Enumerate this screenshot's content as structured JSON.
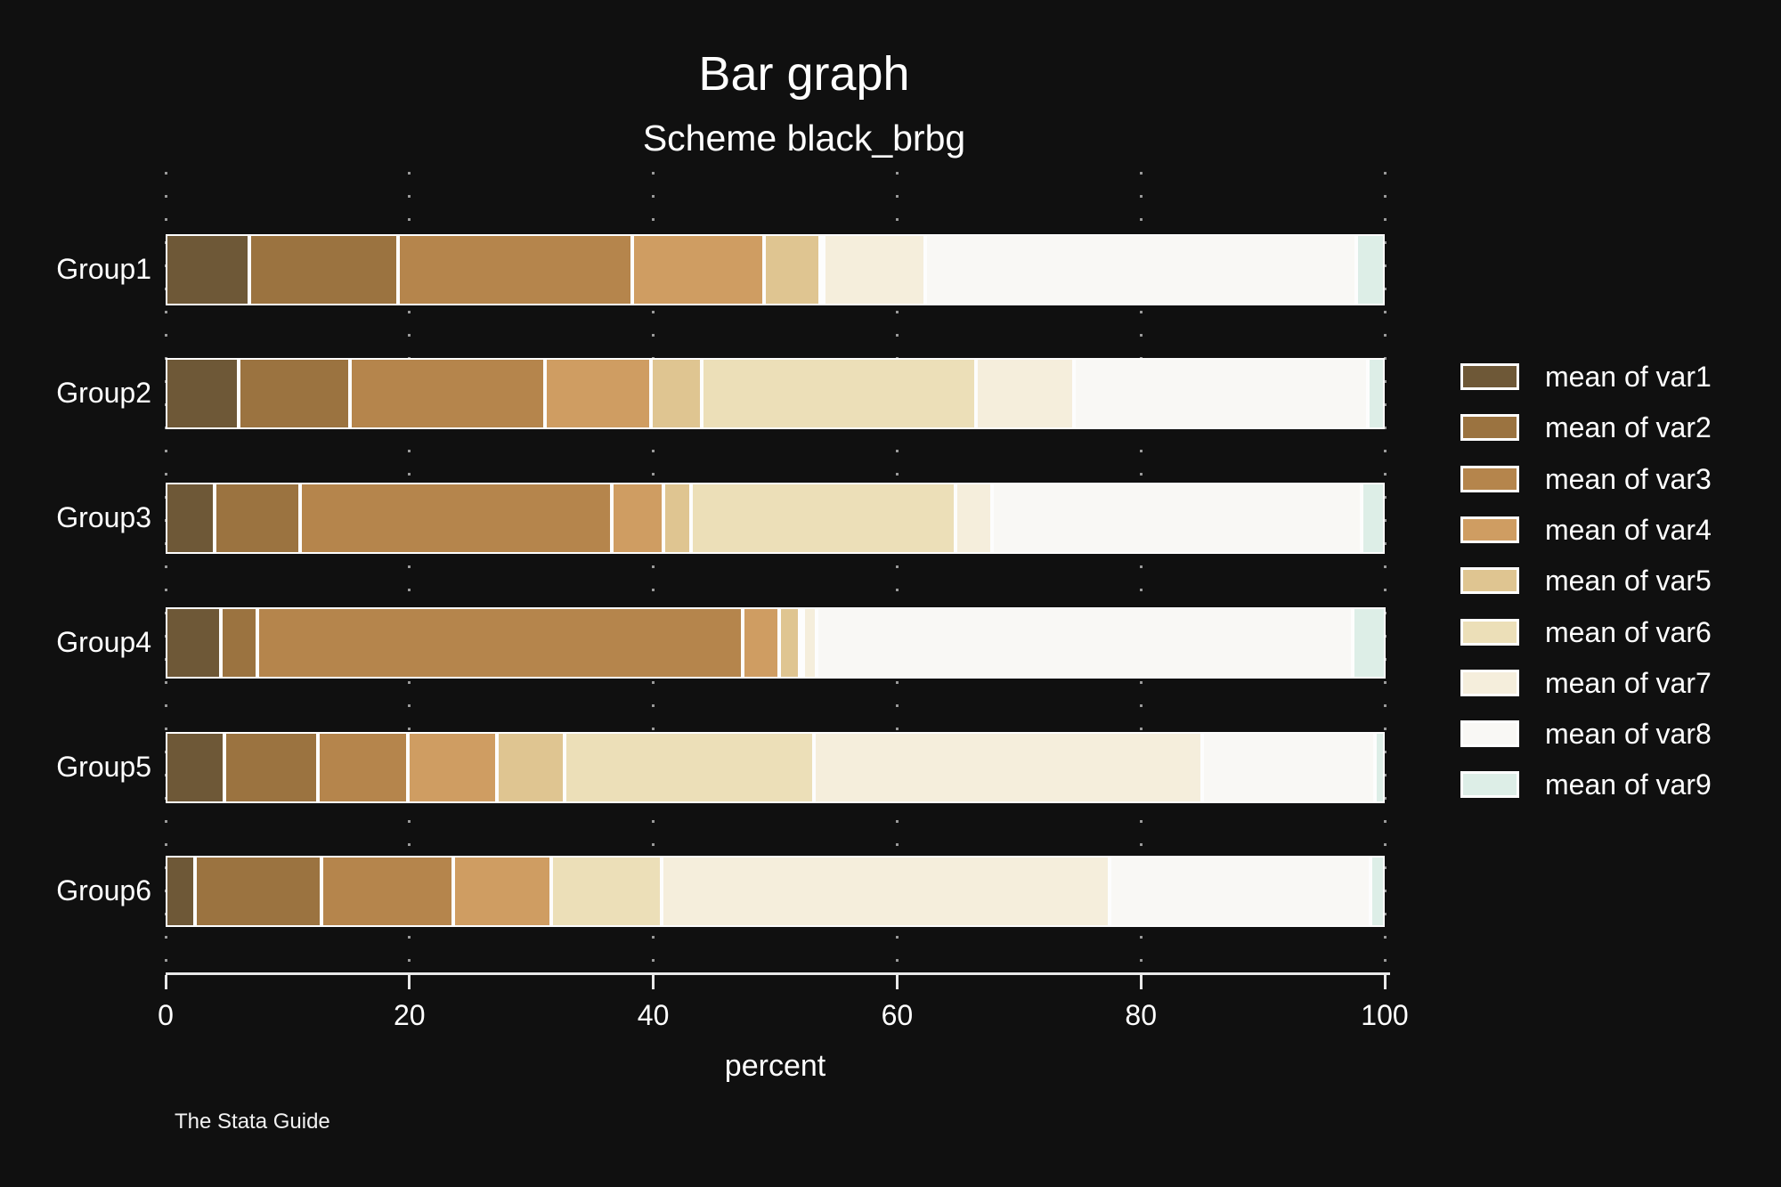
{
  "page": {
    "background": "#101010"
  },
  "chart_data": {
    "type": "bar",
    "orientation": "horizontal-stacked",
    "title": "Bar graph",
    "subtitle": "Scheme black_brbg",
    "xlabel": "percent",
    "caption": "The Stata Guide",
    "xlim": [
      0,
      100
    ],
    "xticks": [
      0,
      20,
      40,
      60,
      80,
      100
    ],
    "grid": "dotted-vertical-gridlines",
    "legend_position": "right-middle",
    "background_color": "#101010",
    "segment_outline_color": "#fdfdfd",
    "categories": [
      "Group1",
      "Group2",
      "Group3",
      "Group4",
      "Group5",
      "Group6"
    ],
    "series": [
      {
        "name": "mean of var1",
        "color": "#6e5837",
        "values": [
          6.9,
          6.0,
          4.0,
          4.5,
          4.8,
          2.4
        ]
      },
      {
        "name": "mean of var2",
        "color": "#9b7340",
        "values": [
          12.2,
          9.1,
          7.0,
          3.0,
          7.7,
          10.4
        ]
      },
      {
        "name": "mean of var3",
        "color": "#b5854c",
        "values": [
          19.2,
          16.0,
          25.6,
          39.8,
          7.4,
          10.8
        ]
      },
      {
        "name": "mean of var4",
        "color": "#cf9d62",
        "values": [
          10.8,
          8.7,
          4.2,
          3.0,
          7.3,
          8.0
        ]
      },
      {
        "name": "mean of var5",
        "color": "#dfc591",
        "values": [
          4.6,
          4.2,
          2.3,
          1.7,
          5.5,
          0.0
        ]
      },
      {
        "name": "mean of var6",
        "color": "#ecdfb8",
        "values": [
          0.3,
          22.5,
          21.7,
          0.2,
          20.5,
          9.1
        ]
      },
      {
        "name": "mean of var7",
        "color": "#f5eedc",
        "values": [
          8.3,
          8.0,
          3.0,
          1.1,
          31.8,
          36.7
        ]
      },
      {
        "name": "mean of var8",
        "color": "#f9f8f5",
        "values": [
          35.4,
          24.1,
          30.3,
          44.0,
          14.2,
          21.4
        ]
      },
      {
        "name": "mean of var9",
        "color": "#ddeee7",
        "values": [
          2.3,
          1.4,
          1.9,
          2.7,
          0.8,
          1.2
        ]
      }
    ]
  }
}
